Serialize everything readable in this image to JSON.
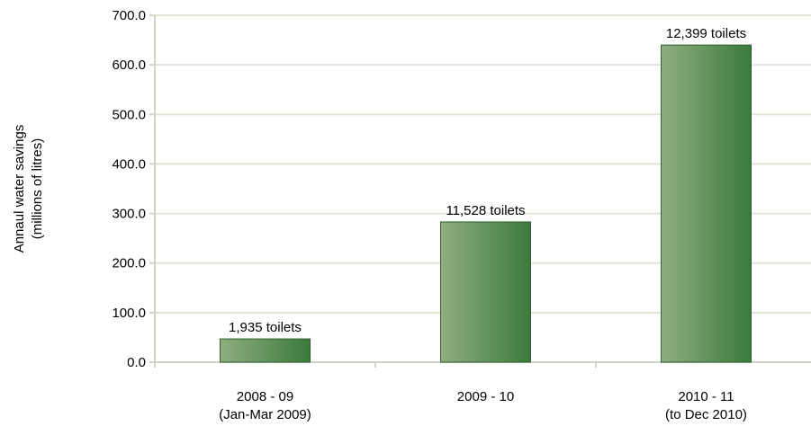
{
  "chart_data": {
    "type": "bar",
    "title": "",
    "ylabel_lines": [
      "Annaul water savings",
      "(millions of litres)"
    ],
    "xlabel": "",
    "categories": [
      {
        "line1": "2008 - 09",
        "line2": "(Jan-Mar 2009)"
      },
      {
        "line1": "2009 - 10",
        "line2": ""
      },
      {
        "line1": "2010 - 11",
        "line2": "(to Dec 2010)"
      }
    ],
    "values": [
      47,
      283,
      640
    ],
    "data_labels": [
      "1,935 toilets",
      "11,528 toilets",
      "12,399 toilets"
    ],
    "ylim": [
      0,
      700
    ],
    "yticks": [
      "0.0",
      "100.0",
      "200.0",
      "300.0",
      "400.0",
      "500.0",
      "600.0",
      "700.0"
    ],
    "ytick_values": [
      0,
      100,
      200,
      300,
      400,
      500,
      600,
      700
    ],
    "grid": true,
    "legend": "none",
    "colors": {
      "bar_light": "#8fae7f",
      "bar_dark": "#3a7a3c",
      "bar_stroke": "#2f5f30",
      "grid": "#e6e3da",
      "axis": "#d5d2c8"
    }
  }
}
